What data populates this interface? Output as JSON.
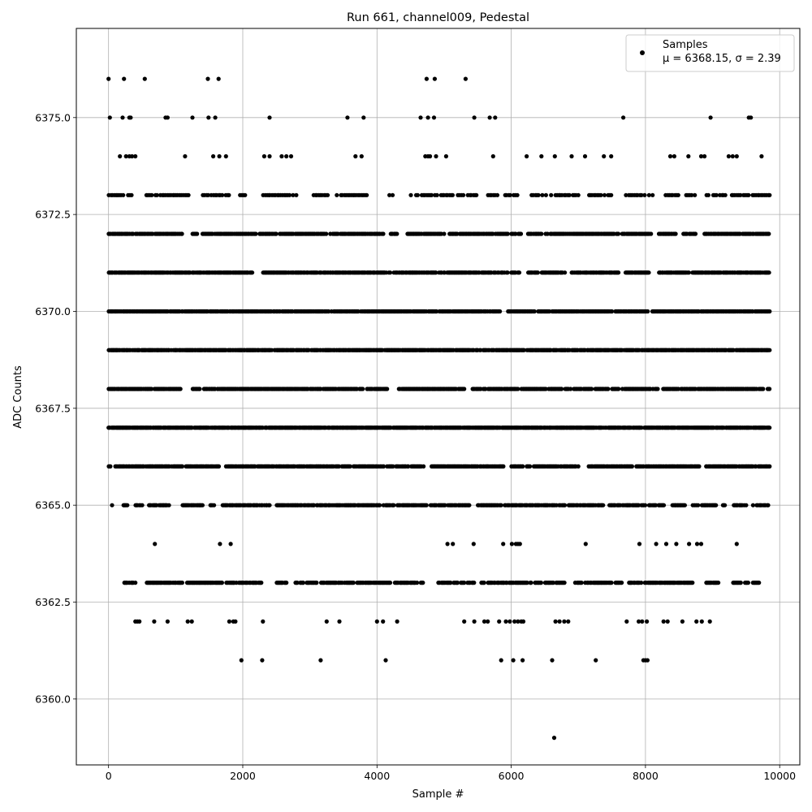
{
  "chart_data": {
    "type": "scatter",
    "title": "Run 661, channel009, Pedestal",
    "xlabel": "Sample #",
    "ylabel": "ADC Counts",
    "xlim": [
      -480,
      10300
    ],
    "ylim": [
      6358.3,
      6377.3
    ],
    "xticks": [
      0,
      2000,
      4000,
      6000,
      8000,
      10000
    ],
    "xtick_labels": [
      "0",
      "2000",
      "4000",
      "6000",
      "8000",
      "10000"
    ],
    "yticks": [
      6360.0,
      6362.5,
      6365.0,
      6367.5,
      6370.0,
      6372.5,
      6375.0
    ],
    "ytick_labels": [
      "6360.0",
      "6362.5",
      "6365.0",
      "6367.5",
      "6370.0",
      "6372.5",
      "6375.0"
    ],
    "grid": true,
    "legend_position": "top-right",
    "legend": {
      "marker_label": "Samples",
      "stats_label": "μ = 6368.15, σ = 2.39"
    },
    "marker_color": "#000000",
    "series": [
      {
        "name": "Samples",
        "points": [
          [
            0,
            6376
          ],
          [
            20,
            6375
          ],
          [
            230,
            6376
          ],
          [
            540,
            6376
          ],
          [
            1480,
            6376
          ],
          [
            1640,
            6376
          ],
          [
            4740,
            6376
          ],
          [
            4860,
            6376
          ],
          [
            5320,
            6376
          ],
          [
            210,
            6375
          ],
          [
            310,
            6375
          ],
          [
            330,
            6375
          ],
          [
            850,
            6375
          ],
          [
            880,
            6375
          ],
          [
            1250,
            6375
          ],
          [
            1490,
            6375
          ],
          [
            1590,
            6375
          ],
          [
            2400,
            6375
          ],
          [
            3560,
            6375
          ],
          [
            3800,
            6375
          ],
          [
            4650,
            6375
          ],
          [
            4760,
            6375
          ],
          [
            4850,
            6375
          ],
          [
            5450,
            6375
          ],
          [
            5680,
            6375
          ],
          [
            5760,
            6375
          ],
          [
            7670,
            6375
          ],
          [
            8970,
            6375
          ],
          [
            9540,
            6375
          ],
          [
            9570,
            6375
          ],
          [
            170,
            6374
          ],
          [
            260,
            6374
          ],
          [
            310,
            6374
          ],
          [
            350,
            6374
          ],
          [
            400,
            6374
          ],
          [
            1140,
            6374
          ],
          [
            1560,
            6374
          ],
          [
            1650,
            6374
          ],
          [
            1750,
            6374
          ],
          [
            2320,
            6374
          ],
          [
            2400,
            6374
          ],
          [
            2580,
            6374
          ],
          [
            2650,
            6374
          ],
          [
            2720,
            6374
          ],
          [
            3680,
            6374
          ],
          [
            3770,
            6374
          ],
          [
            4720,
            6374
          ],
          [
            4760,
            6374
          ],
          [
            4790,
            6374
          ],
          [
            4880,
            6374
          ],
          [
            5030,
            6374
          ],
          [
            5730,
            6374
          ],
          [
            6230,
            6374
          ],
          [
            6450,
            6374
          ],
          [
            6650,
            6374
          ],
          [
            6900,
            6374
          ],
          [
            7100,
            6374
          ],
          [
            7380,
            6374
          ],
          [
            7490,
            6374
          ],
          [
            8370,
            6374
          ],
          [
            8430,
            6374
          ],
          [
            8640,
            6374
          ],
          [
            8830,
            6374
          ],
          [
            8880,
            6374
          ],
          [
            9240,
            6374
          ],
          [
            9300,
            6374
          ],
          [
            9360,
            6374
          ],
          [
            9730,
            6374
          ],
          [
            6640,
            6359
          ],
          [
            1980,
            6361
          ],
          [
            2290,
            6361
          ],
          [
            3160,
            6361
          ],
          [
            4130,
            6361
          ],
          [
            5850,
            6361
          ],
          [
            6030,
            6361
          ],
          [
            6170,
            6361
          ],
          [
            6610,
            6361
          ],
          [
            7260,
            6361
          ],
          [
            7970,
            6361
          ],
          [
            8000,
            6361
          ],
          [
            8030,
            6361
          ],
          [
            400,
            6362
          ],
          [
            430,
            6362
          ],
          [
            460,
            6362
          ],
          [
            680,
            6362
          ],
          [
            880,
            6362
          ],
          [
            1180,
            6362
          ],
          [
            1240,
            6362
          ],
          [
            1800,
            6362
          ],
          [
            1860,
            6362
          ],
          [
            1890,
            6362
          ],
          [
            2300,
            6362
          ],
          [
            3250,
            6362
          ],
          [
            3440,
            6362
          ],
          [
            4000,
            6362
          ],
          [
            4090,
            6362
          ],
          [
            4300,
            6362
          ],
          [
            5300,
            6362
          ],
          [
            5450,
            6362
          ],
          [
            5600,
            6362
          ],
          [
            5650,
            6362
          ],
          [
            5820,
            6362
          ],
          [
            5920,
            6362
          ],
          [
            5980,
            6362
          ],
          [
            6050,
            6362
          ],
          [
            6100,
            6362
          ],
          [
            6150,
            6362
          ],
          [
            6180,
            6362
          ],
          [
            6660,
            6362
          ],
          [
            6720,
            6362
          ],
          [
            6790,
            6362
          ],
          [
            6850,
            6362
          ],
          [
            7720,
            6362
          ],
          [
            7900,
            6362
          ],
          [
            7950,
            6362
          ],
          [
            8020,
            6362
          ],
          [
            8270,
            6362
          ],
          [
            8330,
            6362
          ],
          [
            8550,
            6362
          ],
          [
            8760,
            6362
          ],
          [
            8840,
            6362
          ],
          [
            8960,
            6362
          ],
          [
            690,
            6364
          ],
          [
            1660,
            6364
          ],
          [
            1820,
            6364
          ],
          [
            5050,
            6364
          ],
          [
            5130,
            6364
          ],
          [
            5440,
            6364
          ],
          [
            5880,
            6364
          ],
          [
            6010,
            6364
          ],
          [
            6070,
            6364
          ],
          [
            6100,
            6364
          ],
          [
            6130,
            6364
          ],
          [
            7110,
            6364
          ],
          [
            7910,
            6364
          ],
          [
            8160,
            6364
          ],
          [
            8310,
            6364
          ],
          [
            8460,
            6364
          ],
          [
            8650,
            6364
          ],
          [
            8770,
            6364
          ],
          [
            8830,
            6364
          ],
          [
            9360,
            6364
          ]
        ],
        "bands": [
          {
            "y": 6373,
            "ranges": [
              [
                0,
                400
              ],
              [
                560,
                1200
              ],
              [
                1400,
                1800
              ],
              [
                1950,
                2050
              ],
              [
                2300,
                2800
              ],
              [
                3050,
                3300
              ],
              [
                3400,
                3900
              ],
              [
                4180,
                4250
              ],
              [
                4500,
                5300
              ],
              [
                5350,
                5500
              ],
              [
                5650,
                5800
              ],
              [
                5900,
                6100
              ],
              [
                6300,
                6600
              ],
              [
                6650,
                7000
              ],
              [
                7150,
                7500
              ],
              [
                7700,
                8000
              ],
              [
                8050,
                8150
              ],
              [
                8300,
                8500
              ],
              [
                8600,
                8750
              ],
              [
                8900,
                9200
              ],
              [
                9250,
                9850
              ]
            ],
            "step": 26
          },
          {
            "y": 6372,
            "ranges": [
              [
                0,
                1100
              ],
              [
                1250,
                1350
              ],
              [
                1400,
                2200
              ],
              [
                2250,
                2500
              ],
              [
                2550,
                3250
              ],
              [
                3300,
                4100
              ],
              [
                4200,
                4300
              ],
              [
                4450,
                5000
              ],
              [
                5050,
                5950
              ],
              [
                6000,
                6150
              ],
              [
                6250,
                6450
              ],
              [
                6500,
                7600
              ],
              [
                7650,
                8100
              ],
              [
                8200,
                8450
              ],
              [
                8550,
                8750
              ],
              [
                8850,
                9850
              ]
            ],
            "step": 13
          },
          {
            "y": 6371,
            "ranges": [
              [
                0,
                2150
              ],
              [
                2300,
                4200
              ],
              [
                4250,
                5950
              ],
              [
                6000,
                6150
              ],
              [
                6250,
                6400
              ],
              [
                6450,
                6850
              ],
              [
                6900,
                7600
              ],
              [
                7700,
                8050
              ],
              [
                8200,
                8650
              ],
              [
                8700,
                9850
              ]
            ],
            "step": 12
          },
          {
            "y": 6370,
            "ranges": [
              [
                0,
                5850
              ],
              [
                5950,
                6350
              ],
              [
                6400,
                7500
              ],
              [
                7550,
                8050
              ],
              [
                8100,
                9850
              ]
            ],
            "step": 11
          },
          {
            "y": 6369,
            "ranges": [
              [
                0,
                9850
              ]
            ],
            "step": 10
          },
          {
            "y": 6368,
            "ranges": [
              [
                0,
                1100
              ],
              [
                1250,
                3800
              ],
              [
                3850,
                4150
              ],
              [
                4300,
                5300
              ],
              [
                5400,
                6100
              ],
              [
                6150,
                6750
              ],
              [
                6800,
                7200
              ],
              [
                7250,
                7450
              ],
              [
                7500,
                7600
              ],
              [
                7650,
                8200
              ],
              [
                8250,
                9850
              ]
            ],
            "step": 12
          },
          {
            "y": 6367,
            "ranges": [
              [
                0,
                9850
              ]
            ],
            "step": 9
          },
          {
            "y": 6366,
            "ranges": [
              [
                0,
                30
              ],
              [
                100,
                1100
              ],
              [
                1150,
                1650
              ],
              [
                1750,
                3600
              ],
              [
                3650,
                4100
              ],
              [
                4150,
                4700
              ],
              [
                4800,
                5900
              ],
              [
                6000,
                7000
              ],
              [
                7150,
                7800
              ],
              [
                7850,
                8800
              ],
              [
                8900,
                9850
              ]
            ],
            "step": 12
          },
          {
            "y": 6365,
            "ranges": [
              [
                50,
                60
              ],
              [
                220,
                280
              ],
              [
                400,
                550
              ],
              [
                600,
                900
              ],
              [
                1100,
                1400
              ],
              [
                1500,
                1580
              ],
              [
                1700,
                2400
              ],
              [
                2500,
                4250
              ],
              [
                4300,
                4750
              ],
              [
                4800,
                5400
              ],
              [
                5500,
                5850
              ],
              [
                5900,
                6800
              ],
              [
                6850,
                7400
              ],
              [
                7450,
                8000
              ],
              [
                8050,
                8300
              ],
              [
                8400,
                8600
              ],
              [
                8700,
                9050
              ],
              [
                9150,
                9200
              ],
              [
                9300,
                9500
              ],
              [
                9600,
                9830
              ]
            ],
            "step": 14
          },
          {
            "y": 6363,
            "ranges": [
              [
                230,
                400
              ],
              [
                550,
                1100
              ],
              [
                1150,
                1700
              ],
              [
                1750,
                2300
              ],
              [
                2500,
                2650
              ],
              [
                2750,
                2900
              ],
              [
                2950,
                3100
              ],
              [
                3150,
                3650
              ],
              [
                3700,
                4200
              ],
              [
                4250,
                4600
              ],
              [
                4650,
                4700
              ],
              [
                4900,
                5200
              ],
              [
                5250,
                5300
              ],
              [
                5350,
                5450
              ],
              [
                5550,
                5600
              ],
              [
                5650,
                6300
              ],
              [
                6350,
                6450
              ],
              [
                6500,
                6850
              ],
              [
                6950,
                7050
              ],
              [
                7100,
                7500
              ],
              [
                7550,
                7650
              ],
              [
                7750,
                8700
              ],
              [
                8900,
                9100
              ],
              [
                9300,
                9420
              ],
              [
                9480,
                9530
              ],
              [
                9600,
                9700
              ]
            ],
            "step": 15
          }
        ]
      }
    ]
  }
}
